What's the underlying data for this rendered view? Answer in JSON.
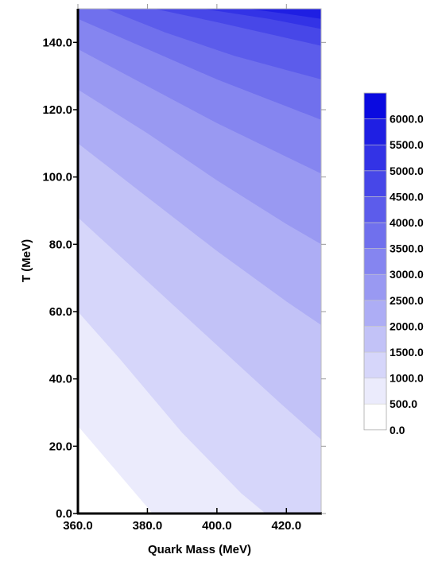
{
  "chart_data": {
    "type": "contour",
    "title": "",
    "xlabel": "Quark Mass (MeV)",
    "ylabel": "T (MeV)",
    "xlim": [
      360,
      430
    ],
    "ylim": [
      0,
      150
    ],
    "x_ticks": [
      "360.0",
      "380.0",
      "400.0",
      "420.0"
    ],
    "x_tick_values": [
      360,
      380,
      400,
      420
    ],
    "y_ticks": [
      "0.0",
      "20.0",
      "40.0",
      "60.0",
      "80.0",
      "100.0",
      "120.0",
      "140.0"
    ],
    "y_tick_values": [
      0,
      20,
      40,
      60,
      80,
      100,
      120,
      140
    ],
    "levels": [
      0,
      500,
      1000,
      1500,
      2000,
      2500,
      3000,
      3500,
      4000,
      4500,
      5000,
      5500,
      6000
    ],
    "legend_labels": [
      "0.0",
      "500.0",
      "1000.0",
      "1500.0",
      "2000.0",
      "2500.0",
      "3000.0",
      "3500.0",
      "4000.0",
      "4500.0",
      "5000.0",
      "5500.0",
      "6000.0"
    ],
    "level_colors": [
      "#ffffff",
      "#ebebfc",
      "#d6d6fa",
      "#c2c2f7",
      "#adadf5",
      "#9999f2",
      "#8585f0",
      "#7070ed",
      "#5c5ceb",
      "#4747e8",
      "#3333e6",
      "#1f1fe3",
      "#0a0ae0"
    ],
    "contour_boundaries": [
      {
        "level": 500,
        "points": [
          [
            360,
            26
          ],
          [
            381.5,
            0
          ]
        ]
      },
      {
        "level": 1000,
        "points": [
          [
            360,
            60
          ],
          [
            372,
            46
          ],
          [
            390,
            24
          ],
          [
            407,
            6
          ],
          [
            414,
            0
          ]
        ]
      },
      {
        "level": 1500,
        "points": [
          [
            360,
            88
          ],
          [
            380,
            69
          ],
          [
            400,
            50
          ],
          [
            418,
            33
          ],
          [
            430,
            22
          ]
        ]
      },
      {
        "level": 2000,
        "points": [
          [
            360,
            110
          ],
          [
            380,
            94
          ],
          [
            400,
            78
          ],
          [
            420,
            63
          ],
          [
            430,
            56
          ]
        ]
      },
      {
        "level": 2500,
        "points": [
          [
            360,
            126
          ],
          [
            380,
            113
          ],
          [
            400,
            99
          ],
          [
            420,
            86
          ],
          [
            430,
            80
          ]
        ]
      },
      {
        "level": 3000,
        "points": [
          [
            360,
            138
          ],
          [
            380,
            127
          ],
          [
            400,
            116
          ],
          [
            420,
            106
          ],
          [
            430,
            101
          ]
        ]
      },
      {
        "level": 3500,
        "points": [
          [
            360,
            147
          ],
          [
            380,
            138
          ],
          [
            400,
            129
          ],
          [
            420,
            121
          ],
          [
            430,
            117
          ]
        ]
      },
      {
        "level": 4000,
        "points": [
          [
            368,
            150
          ],
          [
            385,
            143
          ],
          [
            405,
            136
          ],
          [
            430,
            129
          ]
        ]
      },
      {
        "level": 4500,
        "points": [
          [
            382,
            150
          ],
          [
            400,
            146
          ],
          [
            430,
            139
          ]
        ]
      },
      {
        "level": 5000,
        "points": [
          [
            396,
            150
          ],
          [
            415,
            147
          ],
          [
            430,
            144
          ]
        ]
      },
      {
        "level": 5500,
        "points": [
          [
            409,
            150
          ],
          [
            420,
            148.5
          ],
          [
            430,
            147
          ]
        ]
      }
    ]
  }
}
